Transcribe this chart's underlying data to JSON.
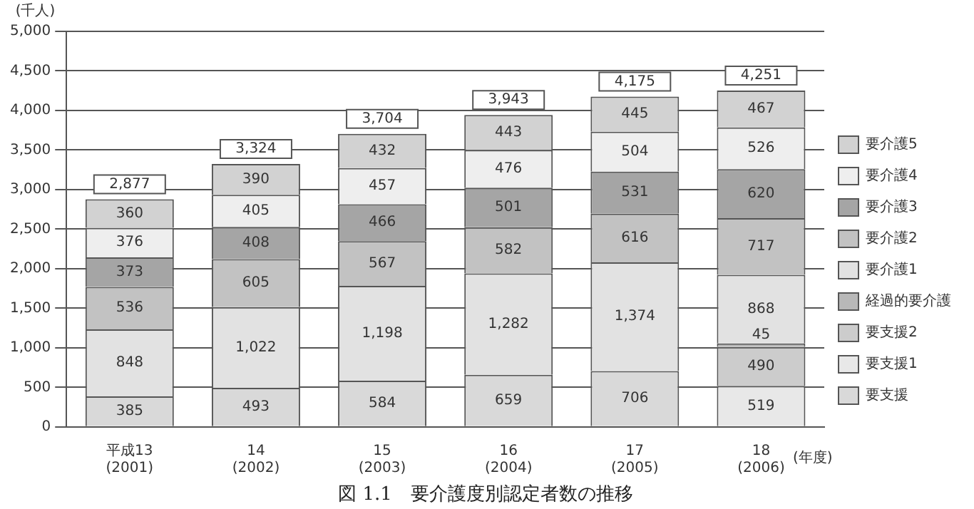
{
  "chart_data": {
    "type": "bar",
    "stacked": true,
    "title": "図 1.1　要介護度別認定者数の推移",
    "ylabel": "(千人)",
    "xlabel": "(年度)",
    "categories": [
      "平成13\n(2001)",
      "14\n(2002)",
      "15\n(2003)",
      "16\n(2004)",
      "17\n(2005)",
      "18\n(2006)"
    ],
    "series": [
      {
        "name": "要支援",
        "color": "#d9d9d9",
        "values": [
          385,
          493,
          584,
          659,
          706,
          null
        ]
      },
      {
        "name": "要支援1",
        "color": "#e8e8e8",
        "values": [
          null,
          null,
          null,
          null,
          null,
          519
        ]
      },
      {
        "name": "要支援2",
        "color": "#cccccc",
        "values": [
          null,
          null,
          null,
          null,
          null,
          490
        ]
      },
      {
        "name": "経過的要介護",
        "color": "#b8b8b8",
        "values": [
          null,
          null,
          null,
          null,
          null,
          45
        ]
      },
      {
        "name": "要介護1",
        "color": "#e2e2e2",
        "values": [
          848,
          1022,
          1198,
          1282,
          1374,
          868
        ],
        "value_labels": [
          "848",
          "1,022",
          "1,198",
          "1,282",
          "1,374",
          "868"
        ]
      },
      {
        "name": "要介護2",
        "color": "#c2c2c2",
        "values": [
          536,
          605,
          567,
          582,
          616,
          717
        ]
      },
      {
        "name": "要介護3",
        "color": "#a5a5a5",
        "values": [
          373,
          408,
          466,
          501,
          531,
          620
        ]
      },
      {
        "name": "要介護4",
        "color": "#eeeeee",
        "values": [
          376,
          405,
          457,
          476,
          504,
          526
        ]
      },
      {
        "name": "要介護5",
        "color": "#d2d2d2",
        "values": [
          360,
          390,
          432,
          443,
          445,
          467
        ]
      }
    ],
    "totals": [
      "2,877",
      "3,324",
      "3,704",
      "3,943",
      "4,175",
      "4,251"
    ],
    "data_labels": true,
    "ylim": [
      0,
      5000
    ],
    "yticks": [
      0,
      {
        "value": 500,
        "label": "500"
      },
      {
        "value": 1000,
        "label": "1,000"
      },
      {
        "value": 1500,
        "label": "1,500"
      },
      {
        "value": 2000,
        "label": "2,000"
      },
      {
        "value": 2500,
        "label": "2,500"
      },
      {
        "value": 3000,
        "label": "3,000"
      },
      {
        "value": 3500,
        "label": "3,500"
      },
      {
        "value": 4000,
        "label": "4,000"
      },
      {
        "value": 4500,
        "label": "4,500"
      },
      {
        "value": 5000,
        "label": "5,000"
      }
    ],
    "grid": "y",
    "legend": "right"
  }
}
